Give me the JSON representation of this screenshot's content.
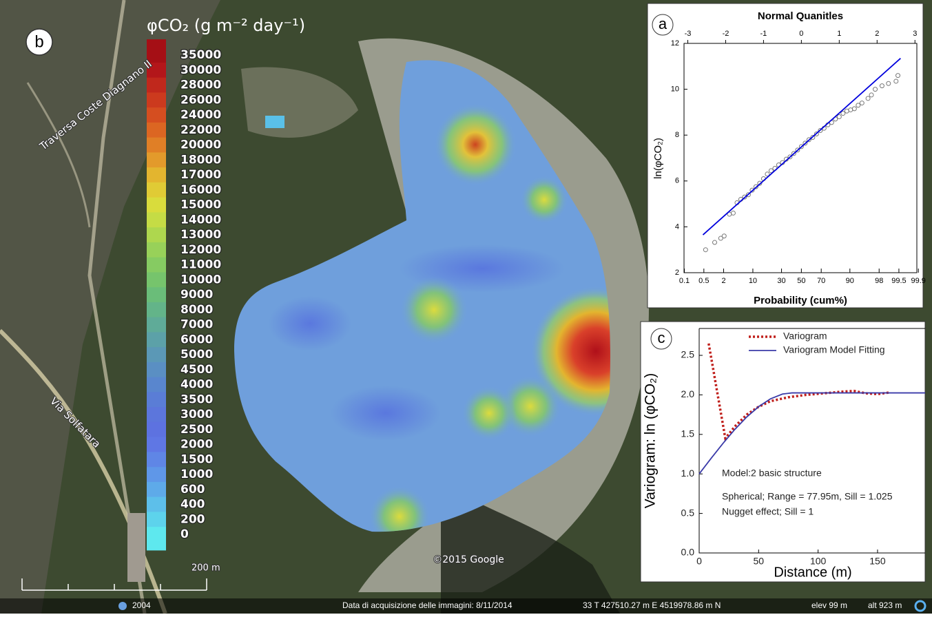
{
  "map": {
    "panel_label": "b",
    "colorbar": {
      "title": "φCO₂ (g m⁻² day⁻¹)",
      "levels": [
        35000,
        30000,
        28000,
        26000,
        24000,
        22000,
        20000,
        18000,
        17000,
        16000,
        15000,
        14000,
        13000,
        12000,
        11000,
        10000,
        9000,
        8000,
        7000,
        6000,
        5000,
        4500,
        4000,
        3500,
        3000,
        2500,
        2000,
        1500,
        1000,
        600,
        400,
        200,
        0
      ],
      "colors": [
        "#a50f15",
        "#b3161a",
        "#c0281c",
        "#cc3a1e",
        "#d54e20",
        "#dc6622",
        "#e07f26",
        "#e39a2b",
        "#e3b52f",
        "#e0cb35",
        "#d9dc3c",
        "#c5dc45",
        "#aed74e",
        "#98d159",
        "#86cb62",
        "#76c46c",
        "#6abd79",
        "#63b489",
        "#5fab98",
        "#5ca1a8",
        "#5b98b6",
        "#5a8fc3",
        "#5986ce",
        "#5a7dd6",
        "#5c76dc",
        "#5d72e0",
        "#5f77e4",
        "#5f86e6",
        "#5f97e8",
        "#5eaae9",
        "#5dbfea",
        "#5dd3ec",
        "#5ee8ee"
      ]
    },
    "street_1": "Traversa Coste Diagnano II",
    "street_2": "Via Solfatara",
    "copyright": "©2015 Google",
    "scale": "200 m",
    "year": "2004",
    "acquisition": "Data di acquisizione delle immagini: 8/11/2014",
    "coords": "33 T 427510.27 m E 4519978.86 m N",
    "elev": "elev   99 m",
    "alt": "alt   923 m"
  },
  "chart_data": [
    {
      "type": "scatter",
      "panel_label": "a",
      "x_label": "Normal Quanitles",
      "x2_label": "Probability (cum%)",
      "y_label": "ln(φCO₂)",
      "xlim": [
        -3.1,
        3.05
      ],
      "xticks": [
        -3,
        -2,
        -1,
        0,
        1,
        2,
        3
      ],
      "x2scale": "probability",
      "x2ticks": [
        0.1,
        0.5,
        2,
        10,
        30,
        50,
        70,
        90,
        98,
        99.5,
        99.9
      ],
      "ylim": [
        2,
        12
      ],
      "yticks": [
        2,
        4,
        6,
        8,
        10,
        12
      ],
      "series": [
        {
          "style": "points",
          "color": "#777777",
          "x": [
            -2.53,
            -2.29,
            -2.13,
            -2.04,
            -1.9,
            -1.8,
            -1.7,
            -1.6,
            -1.5,
            -1.4,
            -1.3,
            -1.2,
            -1.1,
            -1.0,
            -0.9,
            -0.8,
            -0.7,
            -0.6,
            -0.5,
            -0.4,
            -0.3,
            -0.2,
            -0.1,
            0,
            0.1,
            0.2,
            0.3,
            0.4,
            0.5,
            0.6,
            0.7,
            0.8,
            0.9,
            1.0,
            1.1,
            1.2,
            1.3,
            1.4,
            1.5,
            1.6,
            1.76,
            1.85,
            1.95,
            2.13,
            2.3,
            2.5,
            2.55
          ],
          "values": [
            3.0,
            3.32,
            3.5,
            3.6,
            4.55,
            4.6,
            5.05,
            5.2,
            5.3,
            5.4,
            5.6,
            5.75,
            5.9,
            6.1,
            6.3,
            6.45,
            6.55,
            6.7,
            6.8,
            6.95,
            7.05,
            7.2,
            7.35,
            7.5,
            7.65,
            7.8,
            7.9,
            8.05,
            8.2,
            8.3,
            8.45,
            8.55,
            8.7,
            8.8,
            8.95,
            9.05,
            9.1,
            9.15,
            9.3,
            9.4,
            9.6,
            9.75,
            10.0,
            10.15,
            10.25,
            10.35,
            10.6
          ]
        },
        {
          "style": "line",
          "color": "#0000dd",
          "x": [
            -2.6,
            2.62
          ],
          "values": [
            3.65,
            11.35
          ]
        }
      ]
    },
    {
      "type": "line",
      "panel_label": "c",
      "x_label": "Distance (m)",
      "y_label": "Variogram: ln (φCO₂)",
      "xlim": [
        0,
        190
      ],
      "xticks": [
        0,
        50,
        100,
        150
      ],
      "ylim": [
        0,
        2.84
      ],
      "yticks": [
        {
          "value": 0,
          "label": "0.0"
        },
        0.5,
        {
          "value": 1,
          "label": "1.0"
        },
        1.5,
        {
          "value": 2,
          "label": "2.0"
        },
        2.5
      ],
      "series": [
        {
          "name": "Variogram",
          "color": "#c0201c",
          "dash": true,
          "x": [
            8,
            22,
            30,
            40,
            50,
            60,
            75,
            90,
            105,
            120,
            130,
            140,
            150,
            160
          ],
          "values": [
            2.65,
            1.45,
            1.6,
            1.75,
            1.85,
            1.92,
            1.97,
            2.0,
            2.02,
            2.04,
            2.05,
            2.02,
            2.01,
            2.03
          ]
        },
        {
          "name": "Variogram Model Fitting",
          "color": "#3a3aa8",
          "dash": false,
          "x": [
            0,
            10,
            20,
            30,
            40,
            50,
            60,
            70,
            77.95,
            190
          ],
          "values": [
            1.0,
            1.196,
            1.386,
            1.563,
            1.72,
            1.851,
            1.95,
            2.01,
            2.025,
            2.025
          ]
        }
      ],
      "annotations": [
        "Model:2 basic structure",
        "Spherical; Range = 77.95m, Sill =  1.025",
        "Nugget effect; Sill = 1"
      ]
    }
  ]
}
